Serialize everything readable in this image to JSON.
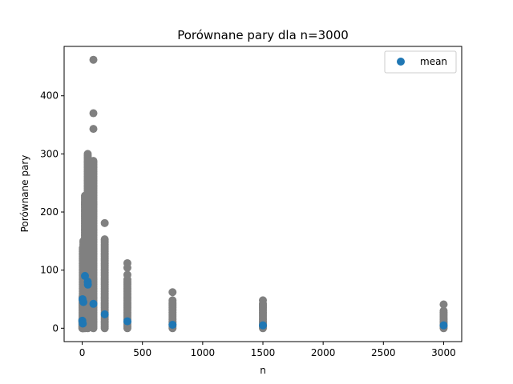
{
  "chart_data": {
    "type": "scatter",
    "title": "Porównane pary dla n=3000",
    "xlabel": "n",
    "ylabel": "Porównane pary",
    "xlim": [
      -150,
      3150
    ],
    "ylim": [
      -23,
      485
    ],
    "xticks": [
      0,
      500,
      1000,
      1500,
      2000,
      2500,
      3000
    ],
    "yticks": [
      0,
      100,
      200,
      300,
      400
    ],
    "grid": false,
    "legend": {
      "placement": "top-right",
      "entries": [
        "mean"
      ]
    },
    "colors": {
      "samples": "#808080",
      "mean": "#1f77b4"
    },
    "samples": {
      "columns": [
        {
          "x": 1,
          "ymin": 0,
          "ymax": 15
        },
        {
          "x": 3,
          "ymin": 0,
          "ymax": 55
        },
        {
          "x": 5,
          "ymin": 0,
          "ymax": 140
        },
        {
          "x": 10,
          "ymin": 0,
          "ymax": 150
        },
        {
          "x": 23,
          "ymin": 0,
          "ymax": 230
        },
        {
          "x": 46,
          "ymin": 0,
          "ymax": 300
        },
        {
          "x": 93,
          "ymin": 0,
          "ymax": 290
        },
        {
          "x": 187,
          "ymin": 0,
          "ymax": 155
        },
        {
          "x": 375,
          "ymin": 0,
          "ymax": 85
        },
        {
          "x": 750,
          "ymin": 0,
          "ymax": 50
        },
        {
          "x": 1500,
          "ymin": 0,
          "ymax": 42
        },
        {
          "x": 3000,
          "ymin": 0,
          "ymax": 30
        }
      ],
      "outliers": [
        {
          "x": 93,
          "y": 462
        },
        {
          "x": 93,
          "y": 370
        },
        {
          "x": 93,
          "y": 343
        },
        {
          "x": 187,
          "y": 181
        },
        {
          "x": 375,
          "y": 112
        },
        {
          "x": 375,
          "y": 104
        },
        {
          "x": 375,
          "y": 92
        },
        {
          "x": 750,
          "y": 62
        },
        {
          "x": 1500,
          "y": 48
        },
        {
          "x": 3000,
          "y": 41
        }
      ]
    },
    "series": [
      {
        "name": "mean",
        "x": [
          1,
          3,
          5,
          10,
          23,
          46,
          47,
          93,
          187,
          375,
          750,
          1500,
          3000
        ],
        "y": [
          13,
          50,
          8,
          45,
          90,
          80,
          75,
          42,
          24,
          12,
          6,
          5,
          5
        ]
      }
    ]
  }
}
